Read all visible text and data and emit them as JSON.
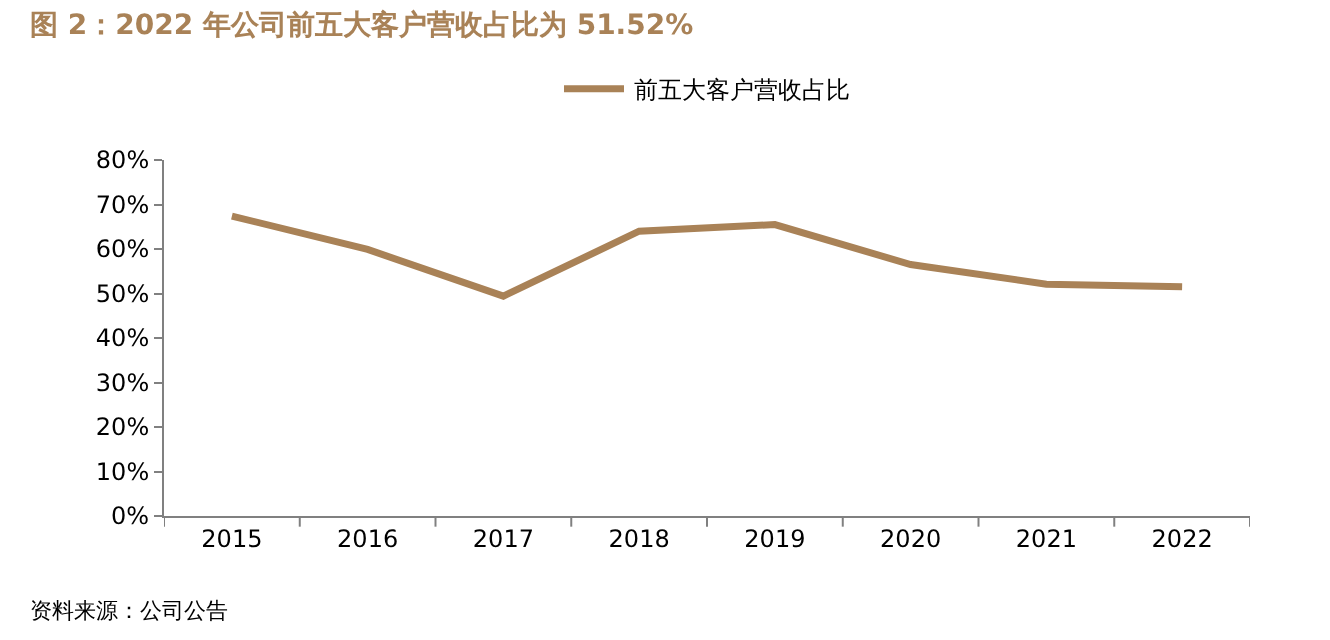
{
  "chart_data": {
    "type": "line",
    "title": "图 2：2022 年公司前五大客户营收占比为 51.52%",
    "categories": [
      "2015",
      "2016",
      "2017",
      "2018",
      "2019",
      "2020",
      "2021",
      "2022"
    ],
    "series": [
      {
        "name": "前五大客户营收占比",
        "color": "#a98257",
        "values": [
          67.4,
          59.9,
          49.4,
          64.0,
          65.5,
          56.5,
          52.1,
          51.5
        ]
      }
    ],
    "ylim": [
      0,
      80
    ],
    "yticks": [
      {
        "value": 0,
        "label": "0%"
      },
      {
        "value": 10,
        "label": "10%"
      },
      {
        "value": 20,
        "label": "20%"
      },
      {
        "value": 30,
        "label": "30%"
      },
      {
        "value": 40,
        "label": "40%"
      },
      {
        "value": 50,
        "label": "50%"
      },
      {
        "value": 60,
        "label": "60%"
      },
      {
        "value": 70,
        "label": "70%"
      },
      {
        "value": 80,
        "label": "80%"
      }
    ],
    "legend": "top",
    "marker": "none",
    "line_style": "solid",
    "annotations": [
      "资料来源：公司公告"
    ]
  }
}
